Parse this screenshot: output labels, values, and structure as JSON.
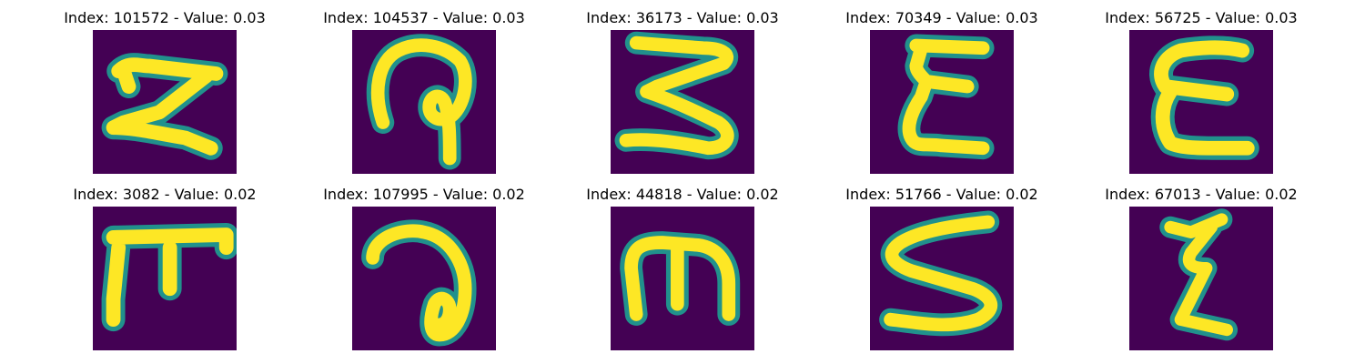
{
  "figure": {
    "colors": {
      "background": "#440154",
      "stroke_core": "#fde725",
      "stroke_edge": "#21918c",
      "stroke_mid": "#5ec962"
    },
    "panels": [
      {
        "title": "Index: 101572 - Value: 0.03",
        "glyph": "hook-z-shape"
      },
      {
        "title": "Index: 104537 - Value: 0.03",
        "glyph": "loop-hook-shape"
      },
      {
        "title": "Index: 36173 - Value: 0.03",
        "glyph": "zigzag-3-shape"
      },
      {
        "title": "Index: 70349 - Value: 0.03",
        "glyph": "epsilon-shape"
      },
      {
        "title": "Index: 56725 - Value: 0.03",
        "glyph": "reversed-3-shape"
      },
      {
        "title": "Index: 3082 - Value: 0.02",
        "glyph": "pi-bar-shape"
      },
      {
        "title": "Index: 107995 - Value: 0.02",
        "glyph": "curl-a-shape"
      },
      {
        "title": "Index: 44818 - Value: 0.02",
        "glyph": "m-shape"
      },
      {
        "title": "Index: 51766 - Value: 0.02",
        "glyph": "s-shape"
      },
      {
        "title": "Index: 67013 - Value: 0.02",
        "glyph": "squiggle-z-shape"
      }
    ]
  }
}
